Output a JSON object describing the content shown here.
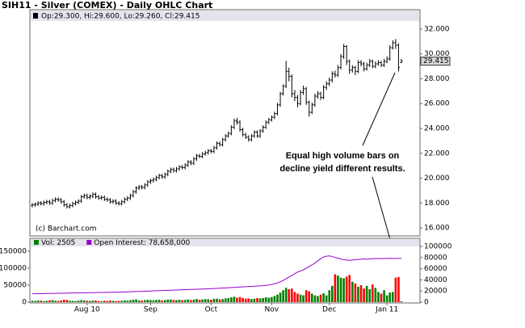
{
  "chart_data": [
    {
      "type": "ohlc",
      "title": "SIH11 - Silver (COMEX) - Daily OHLC Chart",
      "header": "Op:29.300, Hi:29.600, Lo:29.260, Cl:29.415",
      "credit": "(c) Barchart.com",
      "annotation": [
        "Equal high volume bars on",
        "decline yield different results."
      ],
      "color": "#000000",
      "open": [
        17.8,
        17.85,
        17.9,
        18.0,
        17.95,
        18.05,
        18.1,
        18.0,
        18.2,
        18.3,
        18.25,
        18.1,
        17.85,
        17.7,
        17.8,
        17.95,
        18.05,
        18.15,
        18.5,
        18.6,
        18.45,
        18.55,
        18.7,
        18.5,
        18.4,
        18.45,
        18.3,
        18.25,
        18.1,
        18.15,
        18.0,
        17.95,
        18.1,
        18.3,
        18.4,
        18.6,
        18.9,
        19.2,
        19.3,
        19.25,
        19.45,
        19.7,
        19.8,
        19.9,
        20.05,
        20.2,
        20.1,
        20.3,
        20.55,
        20.7,
        20.6,
        20.75,
        20.9,
        20.85,
        21.05,
        21.3,
        21.2,
        21.55,
        21.8,
        21.75,
        21.95,
        22.05,
        22.2,
        22.15,
        22.45,
        22.8,
        22.7,
        23.1,
        23.4,
        23.6,
        24.1,
        24.6,
        24.5,
        23.9,
        23.5,
        23.3,
        23.1,
        23.4,
        23.7,
        23.4,
        23.8,
        24.1,
        24.5,
        24.7,
        24.9,
        25.2,
        25.9,
        26.8,
        27.4,
        28.6,
        28.2,
        26.8,
        26.5,
        26.0,
        26.9,
        27.2,
        26.1,
        25.3,
        25.9,
        26.6,
        26.8,
        26.5,
        27.3,
        27.6,
        27.9,
        28.4,
        28.3,
        28.9,
        29.8,
        30.6,
        29.4,
        28.7,
        28.9,
        28.6,
        29.3,
        29.2,
        28.8,
        29.1,
        29.4,
        29.0,
        29.2,
        29.3,
        29.1,
        29.4,
        29.6,
        30.5,
        30.9,
        30.7,
        29.3
      ],
      "high": [
        18.0,
        18.05,
        18.15,
        18.15,
        18.2,
        18.25,
        18.25,
        18.35,
        18.45,
        18.45,
        18.4,
        18.25,
        18.0,
        17.95,
        18.1,
        18.2,
        18.3,
        18.65,
        18.75,
        18.75,
        18.7,
        18.85,
        18.85,
        18.65,
        18.6,
        18.6,
        18.45,
        18.4,
        18.3,
        18.3,
        18.15,
        18.25,
        18.45,
        18.55,
        18.75,
        19.05,
        19.35,
        19.45,
        19.45,
        19.6,
        19.85,
        19.95,
        20.05,
        20.2,
        20.35,
        20.35,
        20.45,
        20.7,
        20.85,
        20.85,
        20.9,
        21.05,
        21.05,
        21.2,
        21.45,
        21.45,
        21.7,
        21.95,
        21.95,
        22.1,
        22.2,
        22.35,
        22.35,
        22.6,
        22.95,
        22.95,
        23.25,
        23.55,
        23.75,
        24.25,
        24.8,
        24.85,
        24.65,
        24.05,
        23.65,
        23.45,
        23.55,
        23.85,
        23.85,
        23.95,
        24.25,
        24.65,
        24.85,
        25.05,
        25.35,
        26.05,
        26.95,
        27.55,
        29.45,
        28.9,
        28.35,
        27.1,
        26.7,
        27.1,
        27.45,
        27.35,
        26.25,
        26.1,
        26.8,
        27.0,
        26.95,
        27.5,
        27.8,
        28.1,
        28.6,
        28.65,
        29.1,
        30.0,
        30.8,
        30.7,
        29.55,
        29.1,
        29.05,
        29.5,
        29.5,
        29.35,
        29.3,
        29.6,
        29.55,
        29.4,
        29.5,
        29.45,
        29.6,
        29.8,
        30.7,
        31.1,
        31.2,
        30.85,
        29.6
      ],
      "low": [
        17.65,
        17.7,
        17.75,
        17.8,
        17.8,
        17.9,
        17.85,
        17.85,
        18.05,
        18.1,
        17.95,
        17.7,
        17.55,
        17.55,
        17.65,
        17.8,
        17.9,
        18.0,
        18.35,
        18.3,
        18.3,
        18.4,
        18.35,
        18.25,
        18.25,
        18.15,
        18.1,
        17.95,
        17.95,
        17.85,
        17.8,
        17.8,
        17.95,
        18.15,
        18.25,
        18.45,
        18.75,
        19.05,
        19.1,
        19.1,
        19.3,
        19.55,
        19.65,
        19.75,
        19.9,
        19.95,
        19.95,
        20.15,
        20.4,
        20.45,
        20.45,
        20.6,
        20.7,
        20.7,
        20.9,
        21.05,
        21.05,
        21.4,
        21.6,
        21.6,
        21.8,
        21.9,
        22.0,
        22.0,
        22.3,
        22.55,
        22.55,
        22.95,
        23.25,
        23.45,
        23.95,
        24.3,
        23.75,
        23.35,
        23.15,
        22.95,
        22.95,
        23.25,
        23.25,
        23.25,
        23.65,
        23.95,
        24.35,
        24.55,
        24.75,
        25.05,
        25.75,
        26.65,
        27.25,
        27.8,
        26.5,
        26.2,
        25.7,
        25.85,
        26.7,
        25.9,
        24.95,
        25.15,
        25.75,
        26.4,
        26.3,
        26.35,
        27.1,
        27.4,
        27.7,
        28.1,
        28.15,
        28.75,
        29.6,
        29.1,
        28.4,
        28.5,
        28.3,
        28.45,
        29.0,
        28.6,
        28.65,
        28.95,
        28.85,
        28.85,
        29.05,
        28.95,
        28.95,
        29.25,
        29.45,
        30.35,
        30.4,
        28.6,
        29.26
      ],
      "close": [
        17.85,
        17.9,
        18.0,
        17.95,
        18.05,
        18.1,
        18.0,
        18.2,
        18.3,
        18.25,
        18.1,
        17.85,
        17.7,
        17.8,
        17.95,
        18.05,
        18.15,
        18.5,
        18.6,
        18.45,
        18.55,
        18.7,
        18.5,
        18.4,
        18.45,
        18.3,
        18.25,
        18.1,
        18.15,
        18.0,
        17.95,
        18.1,
        18.3,
        18.4,
        18.6,
        18.9,
        19.2,
        19.3,
        19.25,
        19.45,
        19.7,
        19.8,
        19.9,
        20.05,
        20.2,
        20.1,
        20.3,
        20.55,
        20.7,
        20.6,
        20.75,
        20.9,
        20.85,
        21.05,
        21.3,
        21.2,
        21.55,
        21.8,
        21.75,
        21.95,
        22.05,
        22.2,
        22.15,
        22.45,
        22.8,
        22.7,
        23.1,
        23.4,
        23.6,
        24.1,
        24.6,
        24.5,
        23.9,
        23.5,
        23.3,
        23.1,
        23.4,
        23.7,
        23.4,
        23.8,
        24.1,
        24.5,
        24.7,
        24.9,
        25.2,
        25.9,
        26.8,
        27.4,
        28.6,
        28.2,
        26.8,
        26.5,
        26.0,
        26.9,
        27.2,
        26.1,
        25.3,
        25.9,
        26.6,
        26.8,
        26.5,
        27.3,
        27.6,
        27.9,
        28.4,
        28.3,
        28.9,
        29.8,
        30.6,
        29.4,
        28.7,
        28.9,
        28.6,
        29.3,
        29.2,
        28.8,
        29.1,
        29.4,
        29.0,
        29.2,
        29.3,
        29.1,
        29.4,
        29.6,
        30.5,
        30.9,
        30.7,
        28.9,
        29.415
      ],
      "ylim": [
        15.48,
        32.39
      ],
      "yticks": [
        {
          "value": 16,
          "label": "16.000"
        },
        {
          "value": 18,
          "label": "18.000"
        },
        {
          "value": 20,
          "label": "20.000"
        },
        {
          "value": 22,
          "label": "22.000"
        },
        {
          "value": 24,
          "label": "24.000"
        },
        {
          "value": 26,
          "label": "26.000"
        },
        {
          "value": 28,
          "label": "28.000"
        },
        {
          "value": 30,
          "label": "30.000"
        },
        {
          "value": 32,
          "label": "32.000"
        }
      ]
    },
    {
      "type": "bar",
      "categories": [
        null,
        null,
        null,
        null,
        null,
        null,
        null,
        null,
        null,
        null,
        null,
        null,
        null,
        null,
        null,
        null,
        null,
        null,
        null,
        "Aug 10",
        null,
        null,
        null,
        null,
        null,
        null,
        null,
        null,
        null,
        null,
        null,
        null,
        null,
        null,
        null,
        null,
        null,
        null,
        null,
        null,
        null,
        "Sep",
        null,
        null,
        null,
        null,
        null,
        null,
        null,
        null,
        null,
        null,
        null,
        null,
        null,
        null,
        null,
        null,
        null,
        null,
        null,
        null,
        "Oct",
        null,
        null,
        null,
        null,
        null,
        null,
        null,
        null,
        null,
        null,
        null,
        null,
        null,
        null,
        null,
        null,
        null,
        null,
        null,
        null,
        "Nov",
        null,
        null,
        null,
        null,
        null,
        null,
        null,
        null,
        null,
        null,
        null,
        null,
        null,
        null,
        null,
        null,
        null,
        null,
        null,
        "Dec",
        null,
        null,
        null,
        null,
        null,
        null,
        null,
        null,
        null,
        null,
        null,
        null,
        null,
        null,
        null,
        null,
        null,
        null,
        null,
        "Jan 11",
        null,
        null,
        null,
        null,
        null
      ],
      "series": [
        {
          "name": "Vol: 2505",
          "color": "#008000",
          "up_color": "#008000",
          "down_color": "#ff0000",
          "values": [
            4000,
            3500,
            5000,
            4500,
            3000,
            4000,
            5500,
            6000,
            4000,
            3500,
            5000,
            7000,
            6500,
            4000,
            3500,
            3000,
            4500,
            6000,
            5000,
            4000,
            3500,
            4500,
            5000,
            3000,
            2500,
            4000,
            3500,
            5000,
            4000,
            3000,
            3500,
            4000,
            5500,
            4500,
            6000,
            7000,
            8000,
            5000,
            4500,
            6000,
            7000,
            6000,
            5500,
            6500,
            7000,
            5000,
            6000,
            7500,
            8000,
            6500,
            6000,
            7000,
            5500,
            6500,
            8000,
            6000,
            7500,
            9000,
            7000,
            8000,
            9000,
            8500,
            7000,
            9500,
            10000,
            8000,
            9000,
            11000,
            12000,
            14000,
            16000,
            13000,
            15000,
            12000,
            10000,
            11000,
            9000,
            10000,
            12000,
            11000,
            12000,
            14000,
            13000,
            15000,
            18000,
            22000,
            28000,
            35000,
            42000,
            38000,
            40000,
            30000,
            25000,
            22000,
            20000,
            35000,
            32000,
            25000,
            20000,
            18000,
            22000,
            26000,
            20000,
            35000,
            48000,
            82000,
            78000,
            72000,
            70000,
            75000,
            80000,
            60000,
            55000,
            45000,
            50000,
            40000,
            48000,
            38000,
            52000,
            42000,
            30000,
            25000,
            35000,
            20000,
            28000,
            30000,
            72000,
            74000,
            2505
          ]
        },
        {
          "name": "Open Interest: 78,658,000",
          "color": "#9900cc",
          "axis": "y2",
          "values": [
            15000,
            15100,
            15200,
            15300,
            15400,
            15500,
            15600,
            15700,
            15800,
            15900,
            16000,
            16100,
            16200,
            16300,
            16400,
            16500,
            16600,
            16700,
            16800,
            16900,
            17000,
            17100,
            17200,
            17300,
            17400,
            17500,
            17600,
            17700,
            17800,
            17900,
            18000,
            18100,
            18200,
            18400,
            18600,
            18800,
            19000,
            19200,
            19400,
            19600,
            19800,
            20000,
            20200,
            20400,
            20600,
            20800,
            21000,
            21200,
            21400,
            21600,
            21800,
            22000,
            22200,
            22400,
            22600,
            22800,
            23000,
            23200,
            23400,
            23600,
            23800,
            24000,
            24200,
            24400,
            24700,
            25000,
            25300,
            25600,
            25900,
            26200,
            26500,
            26800,
            27100,
            27400,
            27700,
            28000,
            28300,
            28600,
            28900,
            29200,
            29500,
            30000,
            30800,
            31800,
            33000,
            34500,
            36500,
            39000,
            42000,
            45000,
            48000,
            51000,
            54000,
            56000,
            58000,
            61000,
            64000,
            67000,
            70000,
            74000,
            78000,
            81000,
            82500,
            83000,
            82000,
            80000,
            79000,
            77500,
            76000,
            75500,
            75000,
            75500,
            76000,
            76500,
            77000,
            77500,
            77000,
            77500,
            78000,
            78000,
            78500,
            78000,
            78200,
            78400,
            78600,
            78500,
            78300,
            78700,
            78658
          ]
        }
      ],
      "ylim": [
        0,
        164000
      ],
      "yticks": [
        0,
        50000,
        100000,
        150000
      ],
      "y2lim": [
        0,
        100000
      ],
      "y2ticks": [
        0,
        20000,
        40000,
        60000,
        80000,
        100000
      ]
    }
  ]
}
